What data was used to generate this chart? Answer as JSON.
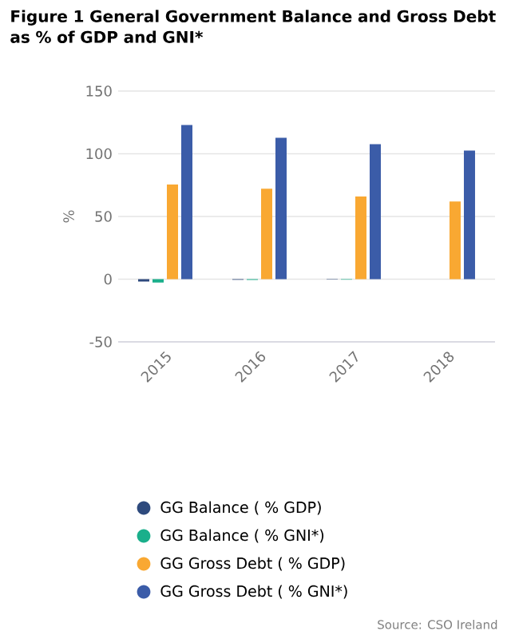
{
  "chart_data": {
    "type": "bar",
    "title": "Figure 1 General Government Balance and Gross Debt as % of GDP and GNI*",
    "ylabel": "%",
    "categories": [
      "2015",
      "2016",
      "2017",
      "2018"
    ],
    "series": [
      {
        "name": "GG Balance ( % GDP)",
        "color": "#2e4a7d",
        "values": [
          -1.9,
          -0.5,
          -0.3,
          0
        ]
      },
      {
        "name": "GG Balance ( % GNI*)",
        "color": "#1aaf8b",
        "values": [
          -2.7,
          -0.6,
          -0.4,
          0
        ]
      },
      {
        "name": "GG Gross Debt ( % GDP)",
        "color": "#f9a832",
        "values": [
          75.5,
          72.1,
          66,
          62
        ]
      },
      {
        "name": "GG Gross Debt ( % GNI*)",
        "color": "#3b5ca8",
        "values": [
          122.9,
          112.8,
          107.7,
          102.6
        ]
      }
    ],
    "ylim": [
      -50,
      150
    ],
    "yticks": [
      -50,
      0,
      50,
      100,
      150
    ],
    "grid": "y",
    "legend": "bottom",
    "annotations": [
      "Source: CSO Ireland"
    ]
  }
}
